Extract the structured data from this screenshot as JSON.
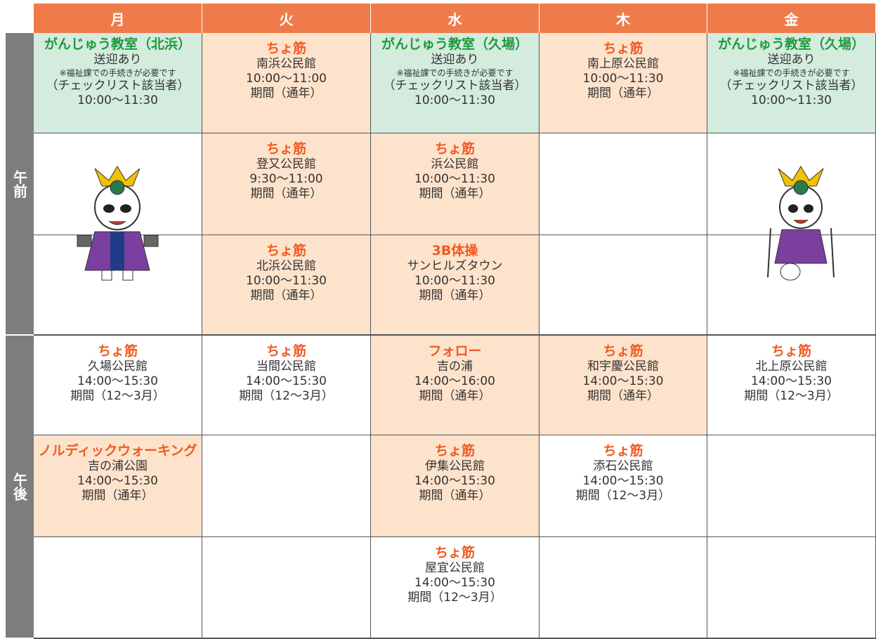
{
  "table": {
    "headers": [
      "月",
      "火",
      "水",
      "木",
      "金"
    ],
    "header_color": "#f07b4a",
    "sections": [
      {
        "label": "午前",
        "rows": [
          [
            {
              "title": "がんじゅう教室（北浜）",
              "title_color": "#1e9a3e",
              "fill": "#d3ecdd",
              "subtitle": "送迎あり",
              "note": "※福祉課での手続きが必要です",
              "lines": [
                "（チェックリスト該当者）",
                "10:00～11:30"
              ]
            },
            {
              "title": "ちょ筋",
              "title_color": "#f05a22",
              "fill": "#fde3cb",
              "lines": [
                "南浜公民館",
                "10:00～11:00",
                "期間（通年）"
              ]
            },
            {
              "title": "がんじゅう教室（久場）",
              "title_color": "#1e9a3e",
              "fill": "#d3ecdd",
              "subtitle": "送迎あり",
              "note": "※福祉課での手続きが必要です",
              "lines": [
                "（チェックリスト該当者）",
                "10:00～11:30"
              ]
            },
            {
              "title": "ちょ筋",
              "title_color": "#f05a22",
              "fill": "#fde3cb",
              "lines": [
                "南上原公民館",
                "10:00～11:30",
                "期間（通年）"
              ]
            },
            {
              "title": "がんじゅう教室（久場）",
              "title_color": "#1e9a3e",
              "fill": "#d3ecdd",
              "subtitle": "送迎あり",
              "note": "※福祉課での手続きが必要です",
              "lines": [
                "（チェックリスト該当者）",
                "10:00～11:30"
              ]
            }
          ],
          [
            null,
            {
              "title": "ちょ筋",
              "title_color": "#f05a22",
              "fill": "#fde3cb",
              "lines": [
                "登又公民館",
                "9:30～11:00",
                "期間（通年）"
              ]
            },
            {
              "title": "ちょ筋",
              "title_color": "#f05a22",
              "fill": "#fde3cb",
              "lines": [
                "浜公民館",
                "10:00～11:30",
                "期間（通年）"
              ]
            },
            null,
            null
          ],
          [
            null,
            {
              "title": "ちょ筋",
              "title_color": "#f05a22",
              "fill": "#fde3cb",
              "lines": [
                "北浜公民館",
                "10:00～11:30",
                "期間（通年）"
              ]
            },
            {
              "title": "3B体操",
              "title_color": "#f05a22",
              "fill": "#fde3cb",
              "lines": [
                "サンヒルズタウン",
                "10:00～11:30",
                "期間（通年）"
              ]
            },
            null,
            null
          ]
        ]
      },
      {
        "label": "午後",
        "rows": [
          [
            {
              "title": "ちょ筋",
              "title_color": "#f05a22",
              "fill": "#ffffff",
              "lines": [
                "久場公民館",
                "14:00～15:30",
                "期間（12～3月）"
              ]
            },
            {
              "title": "ちょ筋",
              "title_color": "#f05a22",
              "fill": "#ffffff",
              "lines": [
                "当間公民館",
                "14:00～15:30",
                "期間（12～3月）"
              ]
            },
            {
              "title": "フォロー",
              "title_color": "#f05a22",
              "fill": "#fde3cb",
              "lines": [
                "吉の浦",
                "14:00～16:00",
                "期間（通年）"
              ]
            },
            {
              "title": "ちょ筋",
              "title_color": "#f05a22",
              "fill": "#fde3cb",
              "lines": [
                "和宇慶公民館",
                "14:00～15:30",
                "期間（通年）"
              ]
            },
            {
              "title": "ちょ筋",
              "title_color": "#f05a22",
              "fill": "#ffffff",
              "lines": [
                "北上原公民館",
                "14:00～15:30",
                "期間（12～3月）"
              ]
            }
          ],
          [
            {
              "title": "ノルディックウォーキング",
              "title_color": "#f05a22",
              "fill": "#fde3cb",
              "lines": [
                "吉の浦公園",
                "14:00～15:30",
                "期間（通年）"
              ]
            },
            null,
            {
              "title": "ちょ筋",
              "title_color": "#f05a22",
              "fill": "#fde3cb",
              "lines": [
                "伊集公民館",
                "14:00～15:30",
                "期間（通年）"
              ]
            },
            {
              "title": "ちょ筋",
              "title_color": "#f05a22",
              "fill": "#ffffff",
              "lines": [
                "添石公民館",
                "14:00～15:30",
                "期間（12～3月）"
              ]
            },
            null
          ],
          [
            null,
            null,
            {
              "title": "ちょ筋",
              "title_color": "#f05a22",
              "fill": "#ffffff",
              "lines": [
                "屋宜公民館",
                "14:00～15:30",
                "期間（12～3月）"
              ]
            },
            null,
            null
          ]
        ]
      }
    ]
  }
}
